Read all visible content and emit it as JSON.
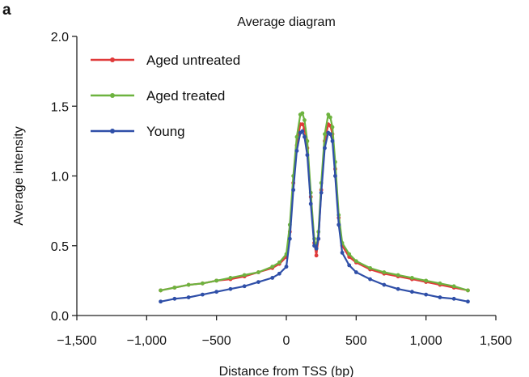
{
  "panel_label": "a",
  "chart_data": {
    "type": "line",
    "title": "Average diagram",
    "xlabel": "Distance from TSS (bp)",
    "ylabel": "Average intensity",
    "xlim": [
      -1500,
      1500
    ],
    "ylim": [
      0,
      2.0
    ],
    "xticks": [
      -1500,
      -1000,
      -500,
      0,
      500,
      1000,
      1500
    ],
    "xtick_labels": [
      "−1,500",
      "−1,000",
      "−500",
      "0",
      "500",
      "1,000",
      "1,500"
    ],
    "yticks": [
      0,
      0.5,
      1.0,
      1.5,
      2.0
    ],
    "ytick_labels": [
      "0.0",
      "0.5",
      "1.0",
      "1.5",
      "2.0"
    ],
    "grid": false,
    "legend_position": "top-left",
    "x": [
      -900,
      -800,
      -700,
      -600,
      -500,
      -400,
      -300,
      -200,
      -100,
      -50,
      0,
      25,
      50,
      75,
      100,
      115,
      130,
      150,
      175,
      200,
      215,
      230,
      250,
      275,
      300,
      315,
      330,
      350,
      375,
      400,
      450,
      500,
      600,
      700,
      800,
      900,
      1000,
      1100,
      1200,
      1300
    ],
    "series": [
      {
        "name": "Aged untreated",
        "color": "#e03a3a",
        "values": [
          0.18,
          0.2,
          0.22,
          0.23,
          0.25,
          0.26,
          0.28,
          0.31,
          0.34,
          0.37,
          0.42,
          0.6,
          0.95,
          1.22,
          1.37,
          1.37,
          1.34,
          1.2,
          0.85,
          0.52,
          0.43,
          0.55,
          0.9,
          1.25,
          1.37,
          1.36,
          1.3,
          1.05,
          0.7,
          0.5,
          0.42,
          0.38,
          0.33,
          0.3,
          0.28,
          0.26,
          0.24,
          0.22,
          0.2,
          0.18
        ]
      },
      {
        "name": "Aged treated",
        "color": "#6db33f",
        "values": [
          0.18,
          0.2,
          0.22,
          0.23,
          0.25,
          0.27,
          0.29,
          0.31,
          0.35,
          0.38,
          0.44,
          0.65,
          1.0,
          1.28,
          1.44,
          1.45,
          1.4,
          1.25,
          0.88,
          0.55,
          0.48,
          0.6,
          0.95,
          1.3,
          1.44,
          1.42,
          1.35,
          1.1,
          0.72,
          0.52,
          0.44,
          0.39,
          0.34,
          0.31,
          0.29,
          0.27,
          0.25,
          0.23,
          0.21,
          0.18
        ]
      },
      {
        "name": "Young",
        "color": "#2f4fa8",
        "values": [
          0.1,
          0.12,
          0.13,
          0.15,
          0.17,
          0.19,
          0.21,
          0.24,
          0.27,
          0.3,
          0.35,
          0.55,
          0.9,
          1.18,
          1.31,
          1.32,
          1.28,
          1.15,
          0.8,
          0.5,
          0.48,
          0.55,
          0.88,
          1.2,
          1.31,
          1.3,
          1.25,
          1.0,
          0.65,
          0.45,
          0.36,
          0.31,
          0.26,
          0.22,
          0.19,
          0.17,
          0.15,
          0.13,
          0.12,
          0.1
        ]
      }
    ]
  }
}
